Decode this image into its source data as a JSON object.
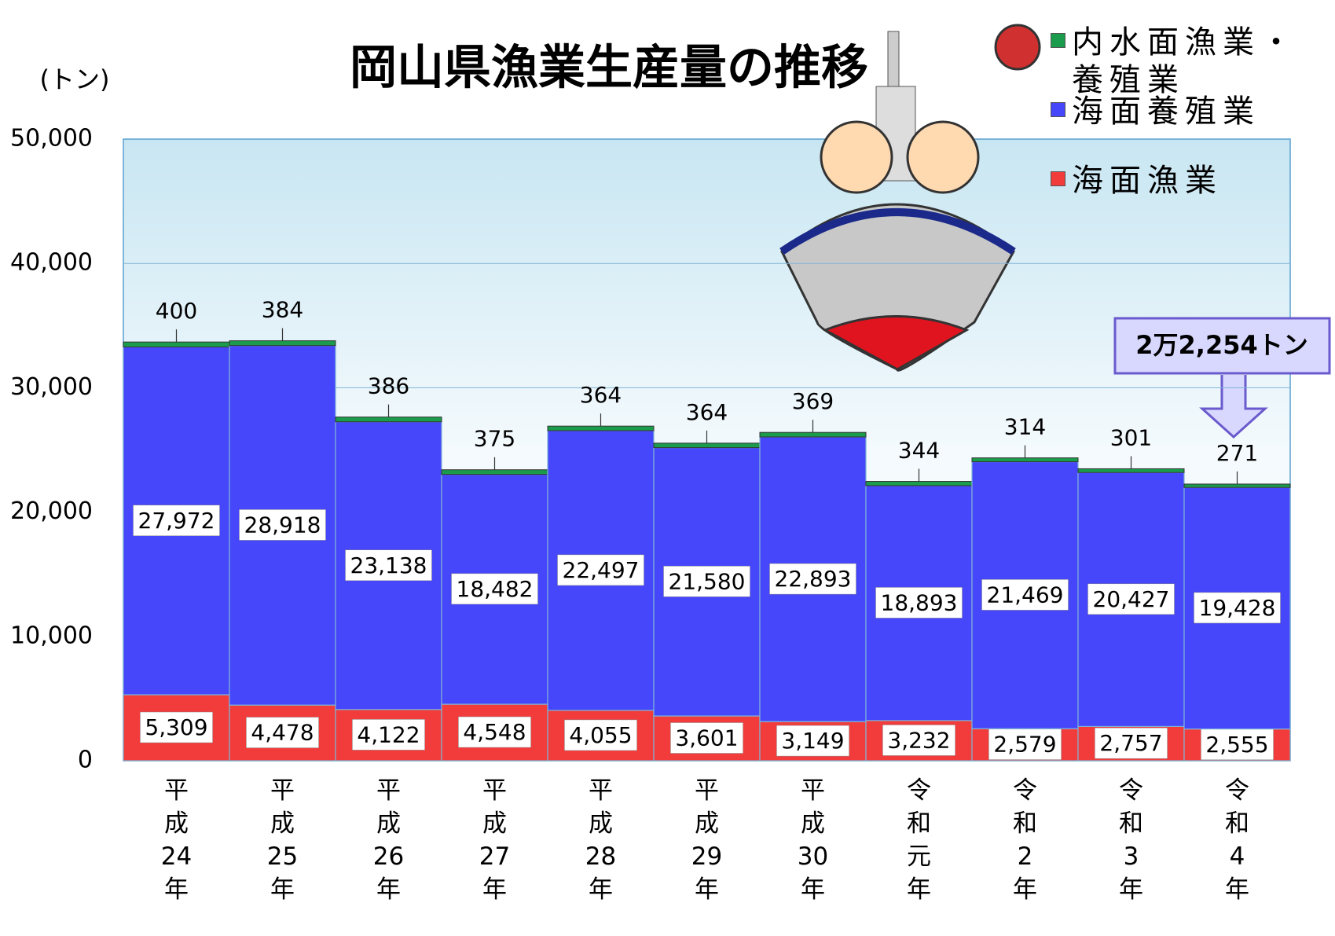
{
  "chart_data": {
    "type": "stacked_bar",
    "title": "岡山県漁業生産量の推移",
    "y_unit": "(トン)",
    "annotation": "2万2,254トン",
    "categories": [
      "平成24年",
      "平成25年",
      "平成26年",
      "平成27年",
      "平成28年",
      "平成29年",
      "平成30年",
      "令和元年",
      "令和2年",
      "令和3年",
      "令和4年"
    ],
    "series": [
      {
        "name": "海面漁業",
        "color": "#f23c3c",
        "values": [
          5309,
          4478,
          4122,
          4548,
          4055,
          3601,
          3149,
          3232,
          2579,
          2757,
          2555
        ],
        "value_labels": [
          "5,309",
          "4,478",
          "4,122",
          "4,548",
          "4,055",
          "3,601",
          "3,149",
          "3,232",
          "2,579",
          "2,757",
          "2,555"
        ]
      },
      {
        "name": "海面養殖業",
        "color": "#4646fa",
        "values": [
          27972,
          28918,
          23138,
          18482,
          22497,
          21580,
          22893,
          18893,
          21469,
          20427,
          19428
        ],
        "value_labels": [
          "27,972",
          "28,918",
          "23,138",
          "18,482",
          "22,497",
          "21,580",
          "22,893",
          "18,893",
          "21,469",
          "20,427",
          "19,428"
        ]
      },
      {
        "name": "内水面漁業・養殖業",
        "color": "#1a9c4c",
        "values": [
          400,
          384,
          386,
          375,
          364,
          364,
          369,
          344,
          314,
          301,
          271
        ]
      }
    ],
    "ylim": [
      0,
      50000
    ],
    "yticks": [
      0,
      {
        "value": 10000,
        "label": "10,000"
      },
      {
        "value": 20000,
        "label": "20,000"
      },
      {
        "value": 30000,
        "label": "30,000"
      },
      {
        "value": 40000,
        "label": "40,000"
      },
      {
        "value": 50000,
        "label": "50,000"
      }
    ],
    "grid": true
  }
}
